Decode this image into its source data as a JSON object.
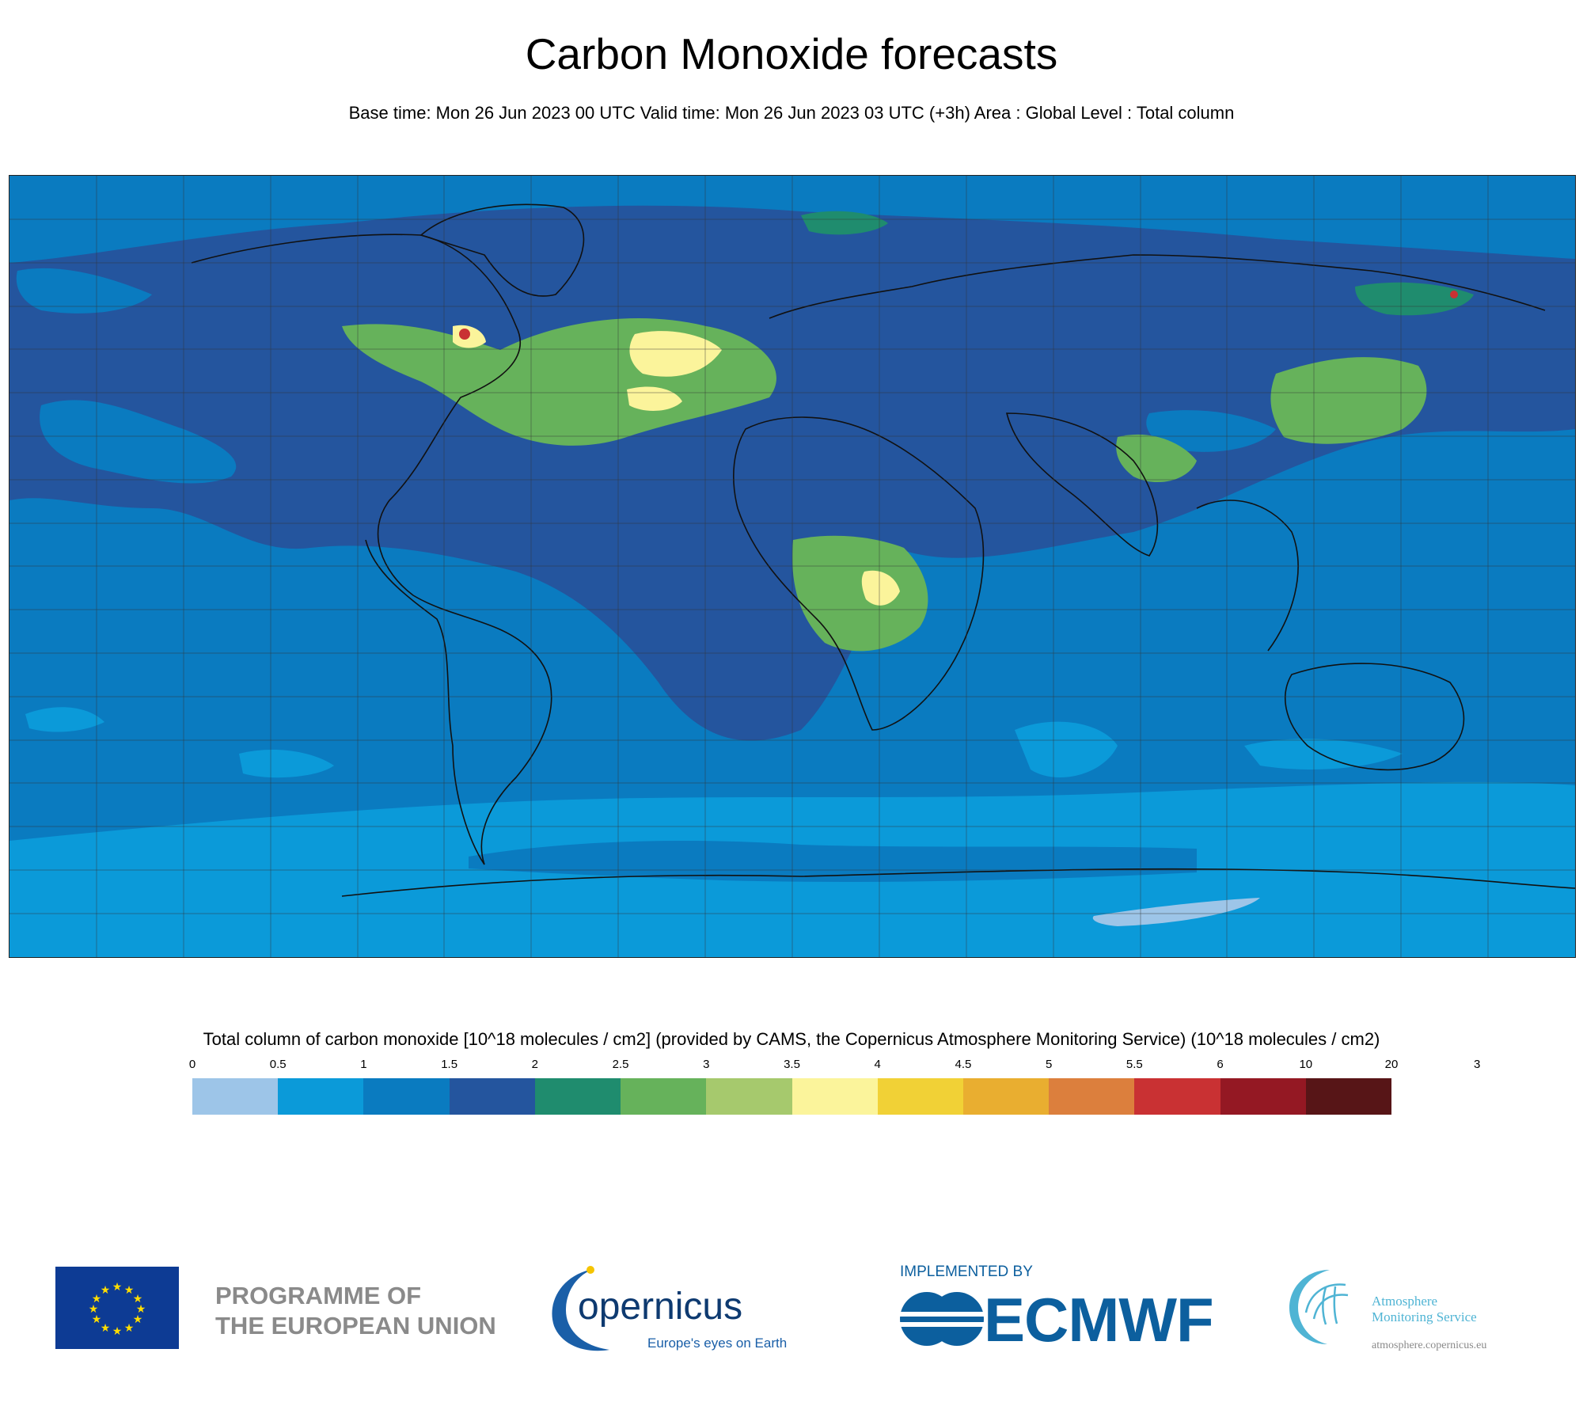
{
  "title": "Carbon Monoxide forecasts",
  "subtitle": "Base time: Mon 26 Jun 2023 00 UTC Valid time: Mon 26 Jun 2023 03 UTC (+3h) Area : Global Level : Total column",
  "legend": {
    "title": "Total column of carbon monoxide [10^18 molecules / cm2] (provided by CAMS, the Copernicus Atmosphere Monitoring Service) (10^18 molecules / cm2)",
    "ticks": [
      "0",
      "0.5",
      "1",
      "1.5",
      "2",
      "2.5",
      "3",
      "3.5",
      "4",
      "4.5",
      "5",
      "5.5",
      "6",
      "10",
      "20",
      "3"
    ],
    "colors": [
      "#9dc5e8",
      "#0b9ad9",
      "#0a7bc0",
      "#24559e",
      "#1f8c6e",
      "#66b25b",
      "#a6c96d",
      "#fbf49b",
      "#f1d136",
      "#e9ae30",
      "#dc7f3d",
      "#c93133",
      "#941823",
      "#571517"
    ]
  },
  "map": {
    "background_color": "#0a7bc0",
    "grid": true,
    "projection": "plate-carree"
  },
  "logos": {
    "eu": {
      "line1": "PROGRAMME OF",
      "line2": "THE EUROPEAN UNION"
    },
    "copernicus": {
      "name": "opernicus",
      "tagline": "Europe's eyes on Earth"
    },
    "ecmwf": {
      "implemented_by": "IMPLEMENTED BY",
      "name": "ECMWF"
    },
    "cams": {
      "line1": "Atmosphere",
      "line2": "Monitoring Service",
      "url": "atmosphere.copernicus.eu"
    }
  }
}
